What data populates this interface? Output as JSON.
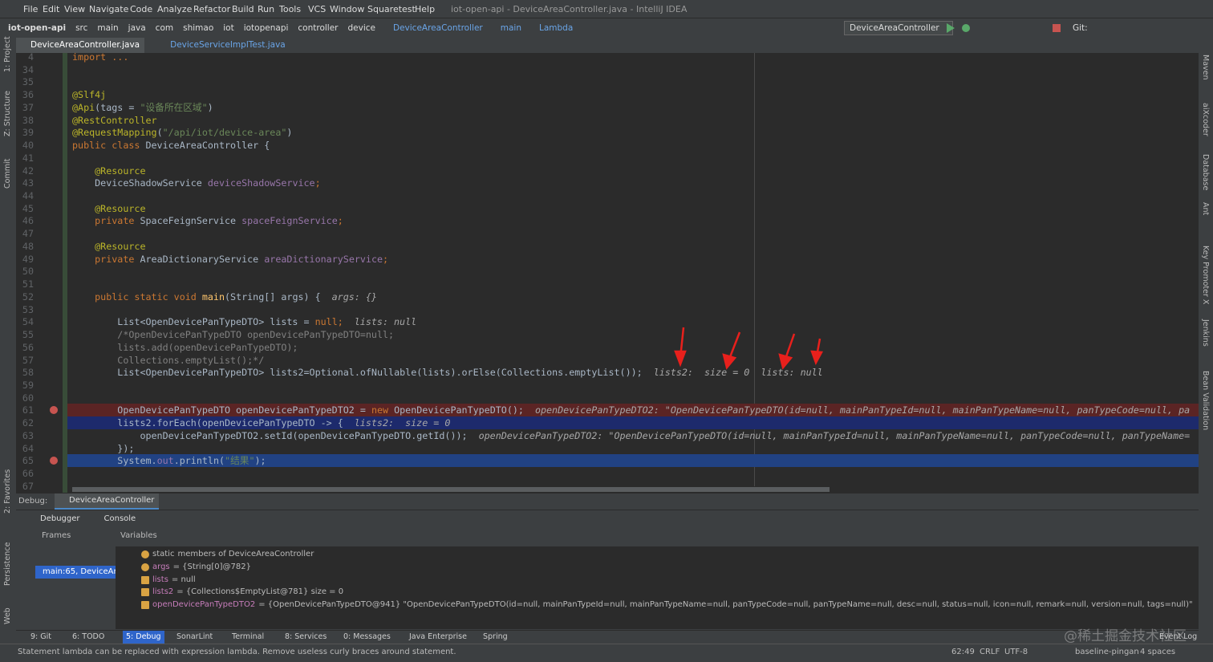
{
  "window_title": "iot-open-api - DeviceAreaController.java - IntelliJ IDEA",
  "menu": [
    "File",
    "Edit",
    "View",
    "Navigate",
    "Code",
    "Analyze",
    "Refactor",
    "Build",
    "Run",
    "Tools",
    "VCS",
    "Window",
    "Squaretest",
    "Help"
  ],
  "breadcrumbs": [
    "iot-open-api",
    "src",
    "main",
    "java",
    "com",
    "shimao",
    "iot",
    "iotopenapi",
    "controller",
    "device",
    "DeviceAreaController",
    "main",
    "Lambda"
  ],
  "run_config": "DeviceAreaController",
  "git_label": "Git:",
  "tabs": [
    "DeviceAreaController.java",
    "DeviceServiceImplTest.java"
  ],
  "left_tools": [
    "1: Project",
    "Z: Structure",
    "Commit",
    "2: Favorites",
    "Persistence",
    "Web"
  ],
  "right_tools": [
    "Maven",
    "aiXcoder",
    "Database",
    "Ant",
    "Key Promoter X",
    "Jenkins",
    "Bean Validation"
  ],
  "code_lines": [
    {
      "num": 4,
      "code": [
        [
          "import ...",
          "#cc7832"
        ]
      ]
    },
    {
      "num": 34,
      "code": []
    },
    {
      "num": 35,
      "code": []
    },
    {
      "num": 36,
      "code": [
        [
          "@Slf4j",
          "#bbb529"
        ]
      ]
    },
    {
      "num": 37,
      "code": [
        [
          "@Api",
          "#bbb529"
        ],
        [
          "(tags = ",
          "#a9b7c6"
        ],
        [
          "\"设备所在区域\"",
          "#6a8759"
        ],
        [
          ")",
          "#a9b7c6"
        ]
      ]
    },
    {
      "num": 38,
      "code": [
        [
          "@RestController",
          "#bbb529"
        ]
      ]
    },
    {
      "num": 39,
      "code": [
        [
          "@RequestMapping",
          "#bbb529"
        ],
        [
          "(",
          "#a9b7c6"
        ],
        [
          "\"/api/iot/device-area\"",
          "#6a8759"
        ],
        [
          ")",
          "#a9b7c6"
        ]
      ]
    },
    {
      "num": 40,
      "code": [
        [
          "public class ",
          "#cc7832"
        ],
        [
          "DeviceAreaController {",
          "#a9b7c6"
        ]
      ]
    },
    {
      "num": 41,
      "code": []
    },
    {
      "num": 42,
      "code": [
        [
          "    @Resource",
          "#bbb529"
        ]
      ]
    },
    {
      "num": 43,
      "code": [
        [
          "    DeviceShadowService ",
          "#a9b7c6"
        ],
        [
          "deviceShadowService",
          "#9876aa"
        ],
        [
          ";",
          "#cc7832"
        ]
      ]
    },
    {
      "num": 44,
      "code": []
    },
    {
      "num": 45,
      "code": [
        [
          "    @Resource",
          "#bbb529"
        ]
      ]
    },
    {
      "num": 46,
      "code": [
        [
          "    private ",
          "#cc7832"
        ],
        [
          "SpaceFeignService ",
          "#a9b7c6"
        ],
        [
          "spaceFeignService",
          "#9876aa"
        ],
        [
          ";",
          "#cc7832"
        ]
      ]
    },
    {
      "num": 47,
      "code": []
    },
    {
      "num": 48,
      "code": [
        [
          "    @Resource",
          "#bbb529"
        ]
      ]
    },
    {
      "num": 49,
      "code": [
        [
          "    private ",
          "#cc7832"
        ],
        [
          "AreaDictionaryService ",
          "#a9b7c6"
        ],
        [
          "areaDictionaryService",
          "#9876aa"
        ],
        [
          ";",
          "#cc7832"
        ]
      ]
    },
    {
      "num": 50,
      "code": []
    },
    {
      "num": 51,
      "code": []
    },
    {
      "num": 52,
      "code": [
        [
          "    public static void ",
          "#cc7832"
        ],
        [
          "main",
          "#ffc66d"
        ],
        [
          "(String[] args) {",
          "#a9b7c6"
        ]
      ],
      "hints": [
        "args: {}"
      ]
    },
    {
      "num": 53,
      "code": []
    },
    {
      "num": 54,
      "code": [
        [
          "        List<OpenDevicePanTypeDTO> lists = ",
          "#a9b7c6"
        ],
        [
          "null;",
          "#cc7832"
        ]
      ],
      "hints": [
        "lists: null"
      ]
    },
    {
      "num": 55,
      "code": [
        [
          "        /*OpenDevicePanTypeDTO openDevicePanTypeDTO=null;",
          "#808080"
        ]
      ]
    },
    {
      "num": 56,
      "code": [
        [
          "        lists.add(openDevicePanTypeDTO);",
          "#808080"
        ]
      ]
    },
    {
      "num": 57,
      "code": [
        [
          "        Collections.emptyList();*/",
          "#808080"
        ]
      ]
    },
    {
      "num": 58,
      "code": [
        [
          "        List<OpenDevicePanTypeDTO> lists2=Optional.ofNullable(lists).orElse(Collections.emptyList());",
          "#a9b7c6"
        ]
      ],
      "hints": [
        "lists2:  size = 0",
        "lists: null"
      ]
    },
    {
      "num": 59,
      "code": []
    },
    {
      "num": 60,
      "code": []
    },
    {
      "num": 61,
      "code": [
        [
          "        OpenDevicePanTypeDTO openDevicePanTypeDTO2 = ",
          "#a9b7c6"
        ],
        [
          "new ",
          "#cc7832"
        ],
        [
          "OpenDevicePanTypeDTO();",
          "#a9b7c6"
        ]
      ],
      "hints": [
        "openDevicePanTypeDTO2: \"OpenDevicePanTypeDTO(id=null, mainPanTypeId=null, mainPanTypeName=null, panTypeCode=null, pa"
      ],
      "highlight": "#5b2424"
    },
    {
      "num": 62,
      "code": [
        [
          "        lists2.forEach(openDevicePanTypeDTO -> {",
          "#a9b7c6"
        ]
      ],
      "hints": [
        "lists2:  size = 0"
      ],
      "highlight": "#1d2a6c"
    },
    {
      "num": 63,
      "code": [
        [
          "            openDevicePanTypeDTO2",
          "#a9b7c6"
        ],
        [
          ".setId(openDevicePanTypeDTO.getId());",
          "#a9b7c6"
        ]
      ],
      "hints": [
        "openDevicePanTypeDTO2: \"OpenDevicePanTypeDTO(id=null, mainPanTypeId=null, mainPanTypeName=null, panTypeCode=null, panTypeName="
      ]
    },
    {
      "num": 64,
      "code": [
        [
          "        });",
          "#a9b7c6"
        ]
      ]
    },
    {
      "num": 65,
      "code": [
        [
          "        System.",
          "#a9b7c6"
        ],
        [
          "out",
          "#9876aa"
        ],
        [
          ".println(",
          "#a9b7c6"
        ],
        [
          "\"结果\"",
          "#6a8759"
        ],
        [
          ");",
          "#a9b7c6"
        ]
      ],
      "highlight": "#214283"
    },
    {
      "num": 66,
      "code": []
    },
    {
      "num": 67,
      "code": []
    }
  ],
  "debug": {
    "label": "Debug:",
    "session_tab": "DeviceAreaController",
    "tabs": [
      "Debugger",
      "Console"
    ],
    "frames_title": "Frames",
    "variables_title": "Variables",
    "frame": "main:65, DeviceAre",
    "variables": [
      {
        "name": "static",
        "value": "members of DeviceAreaController"
      },
      {
        "name": "args",
        "value": "= {String[0]@782}"
      },
      {
        "name": "lists",
        "value": "= null"
      },
      {
        "name": "lists2",
        "value": "= {Collections$EmptyList@781}  size = 0"
      },
      {
        "name": "openDevicePanTypeDTO2",
        "value": "= {OpenDevicePanTypeDTO@941} \"OpenDevicePanTypeDTO(id=null, mainPanTypeId=null, mainPanTypeName=null, panTypeCode=null, panTypeName=null, desc=null, status=null, icon=null, remark=null, version=null, tags=null)\""
      }
    ]
  },
  "tool_windows": [
    "9: Git",
    "6: TODO",
    "5: Debug",
    "SonarLint",
    "Terminal",
    "8: Services",
    "0: Messages",
    "Java Enterprise",
    "Spring",
    "Event Log"
  ],
  "status": {
    "message": "Statement lambda can be replaced with expression lambda. Remove useless curly braces around statement.",
    "position": "62:49",
    "line_sep": "CRLF",
    "encoding": "UTF-8",
    "branch": "baseline-pingan",
    "indent": "4 spaces"
  },
  "watermark": "@稀土掘金技术社区"
}
